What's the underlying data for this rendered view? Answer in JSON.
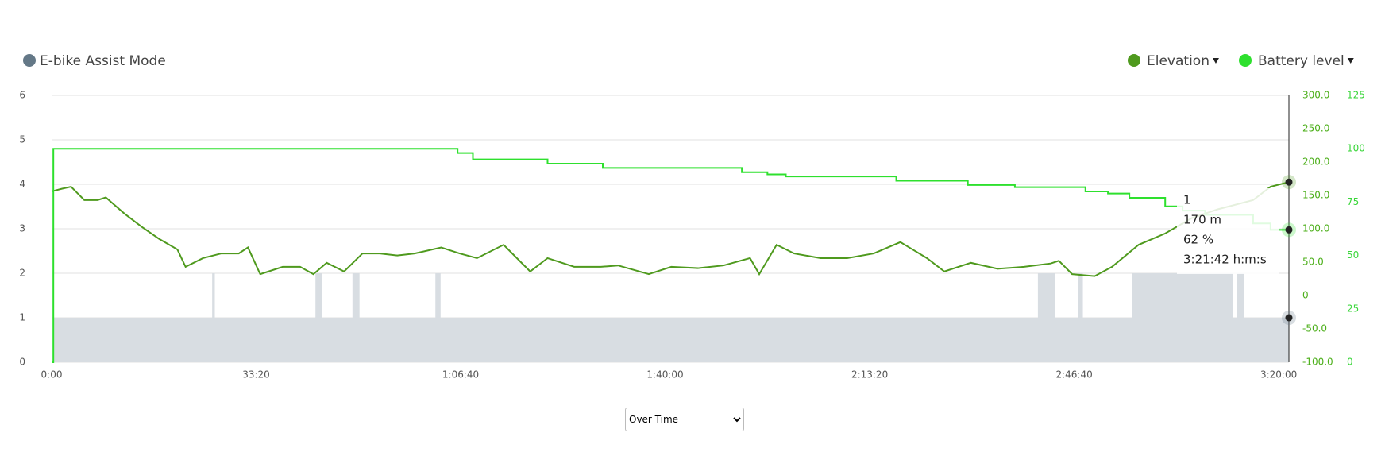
{
  "chart_data": {
    "type": "line",
    "xlim": [
      0,
      12100
    ],
    "xticks": [
      {
        "value": 0,
        "label": "0:00"
      },
      {
        "value": 2000,
        "label": "33:20"
      },
      {
        "value": 4000,
        "label": "1:06:40"
      },
      {
        "value": 6000,
        "label": "1:40:00"
      },
      {
        "value": 8000,
        "label": "2:13:20"
      },
      {
        "value": 10000,
        "label": "2:46:40"
      },
      {
        "value": 12000,
        "label": "3:20:00"
      }
    ],
    "ylim": [
      0,
      6
    ],
    "yticks": [
      0,
      1,
      2,
      3,
      4,
      5,
      6
    ],
    "y2lim": [
      -100,
      300
    ],
    "y2ticks": [
      {
        "value": -100,
        "label": "-100.0"
      },
      {
        "value": -50,
        "label": "-50.0"
      },
      {
        "value": 0,
        "label": "0"
      },
      {
        "value": 50,
        "label": "50.0"
      },
      {
        "value": 100,
        "label": "100.0"
      },
      {
        "value": 150,
        "label": "150.0"
      },
      {
        "value": 200,
        "label": "200.0"
      },
      {
        "value": 250,
        "label": "250.0"
      },
      {
        "value": 300,
        "label": "300.0"
      }
    ],
    "y3lim": [
      0,
      125
    ],
    "y3ticks": [
      0,
      25,
      50,
      75,
      100,
      125
    ],
    "grid": true,
    "series": [
      {
        "name": "E-bike Assist Mode",
        "color": "#647887",
        "fill": "#d8dde2",
        "kind": "step-area",
        "axis": "y",
        "x": [
          0,
          17,
          1570,
          1596,
          2580,
          2648,
          2942,
          3011,
          3753,
          3804,
          9645,
          9809,
          10042,
          10085,
          10568,
          11552,
          11595,
          11664,
          12100
        ],
        "values": [
          0,
          1,
          2,
          1,
          2,
          1,
          2,
          1,
          2,
          1,
          2,
          1,
          2,
          1,
          2,
          1,
          2,
          1,
          1
        ]
      },
      {
        "name": "Elevation",
        "color": "#4f9a1e",
        "kind": "line",
        "axis": "y2",
        "x": [
          0,
          100,
          190,
          320,
          450,
          530,
          710,
          880,
          1050,
          1230,
          1310,
          1480,
          1660,
          1830,
          1920,
          2040,
          2260,
          2430,
          2560,
          2690,
          2860,
          3040,
          3210,
          3380,
          3550,
          3810,
          3990,
          4160,
          4420,
          4680,
          4850,
          5110,
          5370,
          5540,
          5840,
          6060,
          6320,
          6570,
          6830,
          6920,
          7090,
          7260,
          7520,
          7780,
          8040,
          8300,
          8560,
          8730,
          8990,
          9250,
          9510,
          9770,
          9850,
          9980,
          10200,
          10370,
          10630,
          10890,
          11150,
          11400,
          11750,
          11920,
          12100
        ],
        "values": [
          156,
          160,
          163,
          143,
          143,
          147,
          123,
          103,
          85,
          69,
          43,
          56,
          63,
          63,
          72,
          32,
          43,
          43,
          32,
          49,
          36,
          63,
          63,
          60,
          63,
          72,
          63,
          56,
          76,
          36,
          56,
          43,
          43,
          45,
          32,
          43,
          41,
          45,
          56,
          32,
          76,
          63,
          56,
          56,
          63,
          80,
          56,
          36,
          49,
          40,
          43,
          48,
          52,
          32,
          29,
          43,
          76,
          93,
          116,
          129,
          143,
          163,
          170
        ]
      },
      {
        "name": "Battery level",
        "color": "#2ee02e",
        "kind": "step",
        "axis": "y3",
        "x": [
          0,
          17,
          3970,
          4120,
          4850,
          5390,
          6750,
          7000,
          7180,
          8260,
          8960,
          9420,
          10110,
          10330,
          10540,
          10890,
          11060,
          11280,
          11750,
          11920
        ],
        "values": [
          0,
          100,
          98,
          95,
          93,
          91,
          89,
          88,
          87,
          85,
          83,
          82,
          80,
          79,
          77,
          73,
          71,
          69,
          65,
          62
        ]
      }
    ],
    "tooltip": [
      "1",
      "170 m",
      "62 %",
      "3:21:42 h:m:s"
    ],
    "control": {
      "selected": "Over Time"
    }
  }
}
